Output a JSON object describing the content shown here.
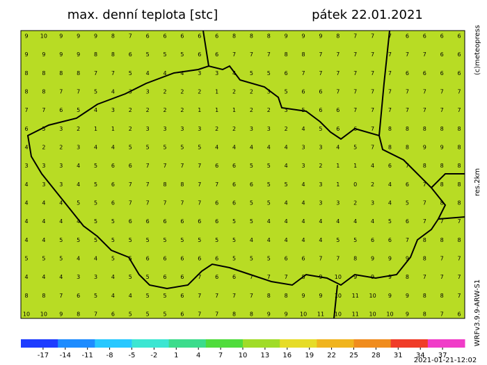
{
  "header": {
    "title": "max. denní teplota [stc]",
    "date": "pátek 22.01.2021"
  },
  "side_labels": {
    "copyright": "(c)meteopress",
    "resolution": "res.2km",
    "model": "WRFv3.9.9-ARW-S1"
  },
  "map": {
    "background": "#b8dc24",
    "grid": [
      [
        9,
        10,
        9,
        9,
        9,
        8,
        7,
        6,
        6,
        6,
        6,
        6,
        8,
        8,
        8,
        9,
        9,
        9,
        8,
        7,
        7,
        7,
        6,
        6,
        6,
        6
      ],
      [
        9,
        9,
        9,
        9,
        8,
        8,
        6,
        5,
        5,
        5,
        6,
        6,
        7,
        7,
        7,
        8,
        8,
        7,
        7,
        7,
        7,
        7,
        7,
        7,
        6,
        6
      ],
      [
        8,
        8,
        8,
        8,
        7,
        7,
        5,
        4,
        4,
        4,
        3,
        3,
        4,
        5,
        5,
        6,
        7,
        7,
        7,
        7,
        7,
        7,
        6,
        6,
        6,
        6
      ],
      [
        8,
        8,
        7,
        7,
        5,
        4,
        3,
        3,
        2,
        2,
        2,
        1,
        2,
        2,
        3,
        5,
        6,
        6,
        7,
        7,
        7,
        7,
        7,
        7,
        7,
        7
      ],
      [
        7,
        7,
        6,
        5,
        4,
        3,
        2,
        2,
        2,
        2,
        1,
        1,
        1,
        2,
        2,
        3,
        5,
        6,
        6,
        7,
        7,
        7,
        7,
        7,
        7,
        7
      ],
      [
        6,
        5,
        3,
        2,
        1,
        1,
        2,
        3,
        3,
        3,
        3,
        2,
        2,
        3,
        3,
        2,
        4,
        5,
        6,
        6,
        7,
        8,
        8,
        8,
        8,
        8
      ],
      [
        4,
        2,
        2,
        3,
        4,
        4,
        5,
        5,
        5,
        5,
        5,
        4,
        4,
        4,
        4,
        4,
        3,
        3,
        4,
        5,
        7,
        8,
        8,
        9,
        9,
        8
      ],
      [
        3,
        3,
        3,
        4,
        5,
        6,
        6,
        7,
        7,
        7,
        7,
        6,
        6,
        5,
        5,
        4,
        3,
        2,
        1,
        1,
        4,
        6,
        7,
        8,
        8,
        8
      ],
      [
        4,
        3,
        3,
        4,
        5,
        6,
        7,
        7,
        8,
        8,
        7,
        7,
        6,
        6,
        5,
        5,
        4,
        3,
        1,
        0,
        2,
        4,
        6,
        7,
        8,
        8
      ],
      [
        4,
        4,
        4,
        5,
        5,
        6,
        7,
        7,
        7,
        7,
        7,
        6,
        6,
        5,
        5,
        4,
        4,
        3,
        3,
        2,
        3,
        4,
        5,
        7,
        8,
        8
      ],
      [
        4,
        4,
        4,
        4,
        5,
        5,
        6,
        6,
        6,
        6,
        6,
        6,
        5,
        5,
        4,
        4,
        4,
        4,
        4,
        4,
        4,
        5,
        6,
        7,
        7,
        7
      ],
      [
        4,
        4,
        5,
        5,
        5,
        5,
        5,
        5,
        5,
        5,
        5,
        5,
        5,
        4,
        4,
        4,
        4,
        4,
        5,
        5,
        6,
        6,
        7,
        8,
        8,
        8
      ],
      [
        5,
        5,
        5,
        4,
        4,
        5,
        5,
        6,
        6,
        6,
        6,
        6,
        5,
        5,
        5,
        6,
        6,
        7,
        7,
        8,
        9,
        9,
        9,
        8,
        7,
        7
      ],
      [
        4,
        4,
        4,
        3,
        3,
        4,
        5,
        5,
        6,
        6,
        7,
        6,
        6,
        7,
        7,
        7,
        8,
        9,
        10,
        9,
        9,
        9,
        8,
        7,
        7,
        7
      ],
      [
        8,
        8,
        7,
        6,
        5,
        4,
        4,
        5,
        5,
        6,
        7,
        7,
        7,
        7,
        8,
        8,
        9,
        9,
        10,
        11,
        10,
        9,
        9,
        8,
        8,
        7
      ],
      [
        10,
        10,
        9,
        8,
        7,
        6,
        5,
        5,
        5,
        6,
        7,
        7,
        8,
        8,
        9,
        9,
        10,
        11,
        10,
        11,
        10,
        10,
        9,
        8,
        7,
        6
      ]
    ]
  },
  "colorbar": {
    "range": [
      -20,
      40
    ],
    "colors": [
      "#1e3cff",
      "#1e8cff",
      "#28c8ff",
      "#3ce6d2",
      "#3cdc8c",
      "#50dc3c",
      "#a0dc28",
      "#e6dc28",
      "#f0b41e",
      "#f08c1e",
      "#f03c28",
      "#f03cc8"
    ],
    "ticks": [
      -17,
      -14,
      -11,
      -8,
      -5,
      -2,
      1,
      4,
      7,
      10,
      13,
      16,
      19,
      22,
      25,
      28,
      31,
      34,
      37
    ]
  },
  "footer": {
    "timestamp": "2021-01-21-12:02"
  }
}
